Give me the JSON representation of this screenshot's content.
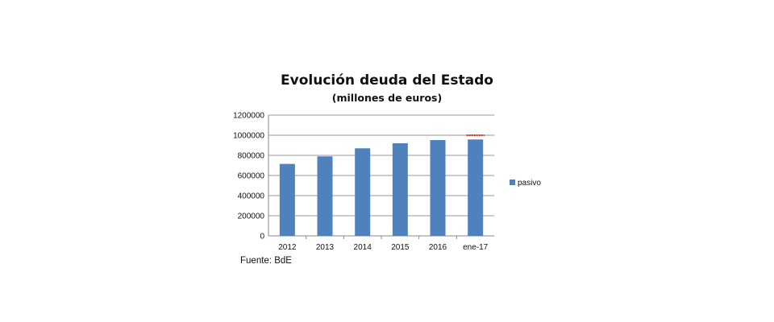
{
  "chart_data": {
    "type": "bar",
    "title": "Evolución deuda del Estado",
    "subtitle": "(millones de euros)",
    "categories": [
      "2012",
      "2013",
      "2014",
      "2015",
      "2016",
      "ene-17"
    ],
    "series": [
      {
        "name": "pasivo",
        "values": [
          715000,
          790000,
          870000,
          920000,
          952000,
          958000
        ],
        "color": "#4f81bd"
      }
    ],
    "ylim": [
      0,
      1200000
    ],
    "yticks": [
      0,
      200000,
      400000,
      600000,
      800000,
      1000000,
      1200000
    ],
    "ytick_labels": [
      "0",
      "200000",
      "400000",
      "600000",
      "800000",
      "1000000",
      "1200000"
    ],
    "grid": true,
    "legend": "right",
    "reference_line": {
      "value": 1000000,
      "color": "#e0201c",
      "category": "ene-17"
    },
    "source": "Fuente: BdE"
  }
}
